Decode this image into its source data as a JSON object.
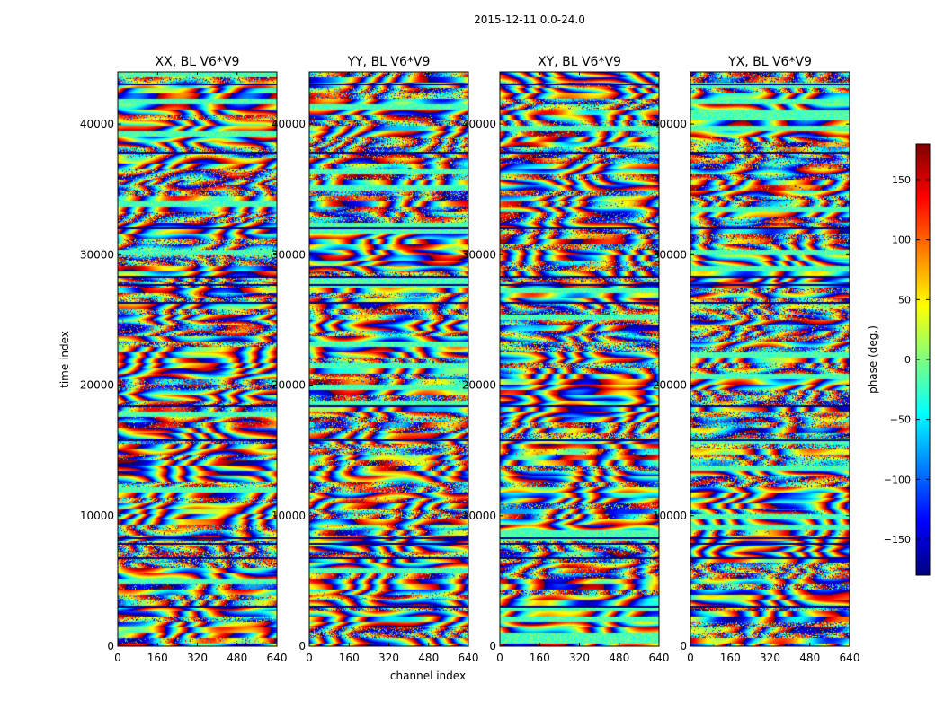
{
  "figure": {
    "suptitle": "2015-12-11 0.0-24.0",
    "xlabel": "channel index",
    "ylabel": "time index",
    "colorbar_label": "phase (deg.)"
  },
  "chart_data": {
    "type": "heatmap",
    "colormap": "jet",
    "panels": [
      {
        "title": "XX, BL V6*V9"
      },
      {
        "title": "YY, BL V6*V9"
      },
      {
        "title": "XY, BL V6*V9"
      },
      {
        "title": "YX, BL V6*V9"
      }
    ],
    "xlim": [
      0,
      640
    ],
    "ylim": [
      0,
      44000
    ],
    "x_ticks": [
      0,
      160,
      320,
      480,
      640
    ],
    "y_ticks": [
      0,
      10000,
      20000,
      30000,
      40000
    ],
    "colorbar": {
      "range": [
        -180,
        180
      ],
      "ticks": [
        -150,
        -100,
        -50,
        0,
        50,
        100,
        150
      ],
      "colors": [
        "#00007f",
        "#0000ff",
        "#007fff",
        "#00ffff",
        "#7fff7f",
        "#ffff00",
        "#ff7f00",
        "#ff0000",
        "#7f0000"
      ]
    }
  }
}
